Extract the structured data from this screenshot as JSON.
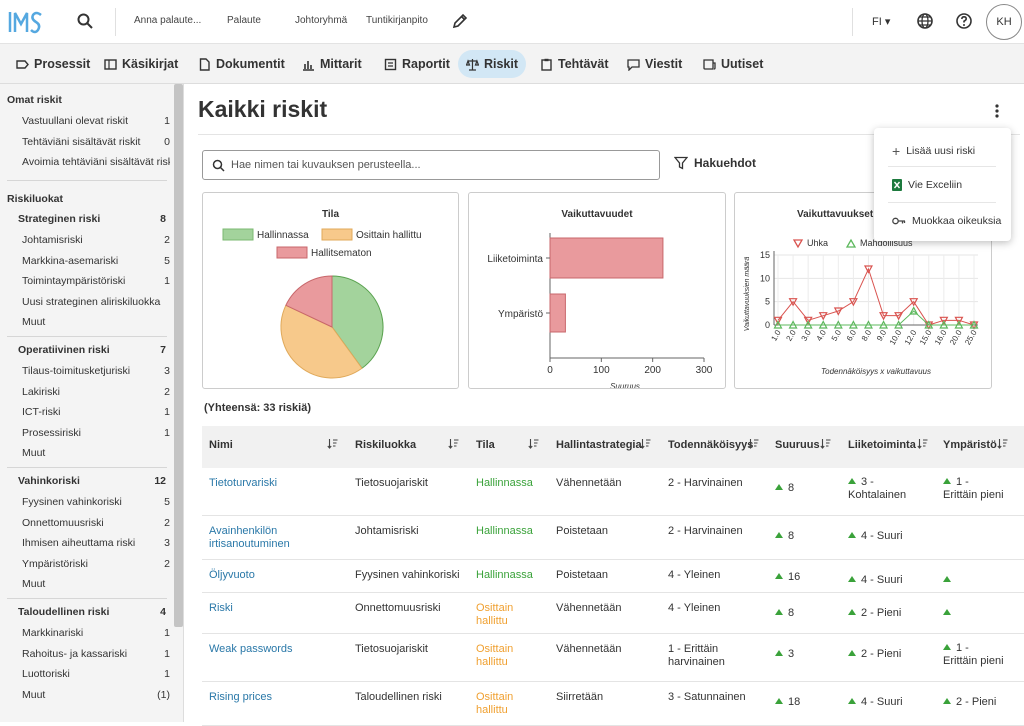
{
  "app": {
    "logo_text": "IMS",
    "user_initials": "KH",
    "language": "FI"
  },
  "top_links": [
    "Anna palaute...",
    "Palaute",
    "Johtoryhmä",
    "Tuntikirjanpito"
  ],
  "nav": [
    {
      "label": "Prosessit",
      "icon": "process-icon"
    },
    {
      "label": "Käsikirjat",
      "icon": "book-icon"
    },
    {
      "label": "Dokumentit",
      "icon": "document-icon"
    },
    {
      "label": "Mittarit",
      "icon": "bar-chart-icon"
    },
    {
      "label": "Raportit",
      "icon": "report-icon"
    },
    {
      "label": "Riskit",
      "icon": "scale-icon",
      "active": true
    },
    {
      "label": "Tehtävät",
      "icon": "clipboard-icon"
    },
    {
      "label": "Viestit",
      "icon": "message-icon"
    },
    {
      "label": "Uutiset",
      "icon": "news-icon"
    }
  ],
  "sidebar": {
    "own_title": "Omat riskit",
    "own": [
      {
        "label": "Vastuullani olevat riskit",
        "count": "1"
      },
      {
        "label": "Tehtäviäni sisältävät riskit",
        "count": "0"
      },
      {
        "label": "Avoimia tehtäviäni sisältävät riskit",
        "count": ""
      }
    ],
    "classes_title": "Riskiluokat",
    "groups": [
      {
        "label": "Strateginen riski",
        "count": "8",
        "items": [
          {
            "label": "Johtamisriski",
            "count": "2"
          },
          {
            "label": "Markkina-asemariski",
            "count": "5"
          },
          {
            "label": "Toimintaympäristöriski",
            "count": "1"
          },
          {
            "label": "Uusi strateginen aliriskiluokka",
            "count": ""
          },
          {
            "label": "Muut",
            "count": ""
          }
        ]
      },
      {
        "label": "Operatiivinen riski",
        "count": "7",
        "items": [
          {
            "label": "Tilaus-toimitusketjuriski",
            "count": "3"
          },
          {
            "label": "Lakiriski",
            "count": "2"
          },
          {
            "label": "ICT-riski",
            "count": "1"
          },
          {
            "label": "Prosessiriski",
            "count": "1"
          },
          {
            "label": "Muut",
            "count": ""
          }
        ]
      },
      {
        "label": "Vahinkoriski",
        "count": "12",
        "items": [
          {
            "label": "Fyysinen vahinkoriski",
            "count": "5"
          },
          {
            "label": "Onnettomuusriski",
            "count": "2"
          },
          {
            "label": "Ihmisen aiheuttama riski",
            "count": "3"
          },
          {
            "label": "Ympäristöriski",
            "count": "2"
          },
          {
            "label": "Muut",
            "count": ""
          }
        ]
      },
      {
        "label": "Taloudellinen riski",
        "count": "4",
        "items": [
          {
            "label": "Markkinariski",
            "count": "1"
          },
          {
            "label": "Rahoitus- ja kassariski",
            "count": "1"
          },
          {
            "label": "Luottoriski",
            "count": "1"
          },
          {
            "label": "Muut",
            "count": "(1)"
          }
        ]
      }
    ]
  },
  "page": {
    "title": "Kaikki riskit",
    "search_placeholder": "Hae nimen tai kuvauksen perusteella...",
    "filter_label": "Hakuehdot",
    "total": "(Yhteensä: 33 riskiä)"
  },
  "menu": {
    "add": "Lisää uusi riski",
    "export": "Vie Exceliin",
    "rights": "Muokkaa oikeuksia"
  },
  "chart_data": [
    {
      "type": "pie",
      "title": "Tila",
      "categories": [
        "Hallinnassa",
        "Osittain hallittu",
        "Hallitsematon"
      ],
      "values": [
        40,
        42,
        18
      ],
      "colors": [
        "#a3d39c",
        "#f7c98b",
        "#e99a9d"
      ]
    },
    {
      "type": "bar",
      "title": "Vaikuttavuudet",
      "categories": [
        "Liiketoiminta",
        "Ympäristö"
      ],
      "values": [
        220,
        30
      ],
      "xlabel": "Suuruus",
      "xlim": [
        0,
        300
      ],
      "ticks": [
        "0",
        "100",
        "200",
        "300"
      ],
      "color": "#e99a9d"
    },
    {
      "type": "line",
      "title": "Vaikuttavuukset",
      "xlabel": "Todennäköisyys x vaikuttavuus",
      "ylabel": "Vaikuttavuuksien määrä",
      "ylim": [
        0,
        15
      ],
      "yticks": [
        "0",
        "5",
        "10",
        "15"
      ],
      "categories": [
        "1.0",
        "2.0",
        "3.0",
        "4.0",
        "5.0",
        "6.0",
        "8.0",
        "9.0",
        "10.0",
        "12.0",
        "15.0",
        "16.0",
        "20.0",
        "25.0"
      ],
      "series": [
        {
          "name": "Uhka",
          "color": "#d9534f",
          "marker": "triangle-down",
          "values": [
            1,
            5,
            1,
            2,
            3,
            5,
            12,
            2,
            2,
            5,
            0,
            1,
            1,
            0
          ]
        },
        {
          "name": "Mahdollisuus",
          "color": "#5cb85c",
          "marker": "triangle-up",
          "values": [
            0,
            0,
            0,
            0,
            0,
            0,
            0,
            0,
            0,
            3,
            0,
            0,
            0,
            0
          ]
        }
      ]
    }
  ],
  "table": {
    "headers": [
      "Nimi",
      "Riskiluokka",
      "Tila",
      "Hallintastrategia",
      "Todennäköisyys",
      "Suuruus",
      "Liiketoiminta",
      "Ympäristö"
    ],
    "rows": [
      {
        "name": "Tietoturvariski",
        "class": "Tietosuojariskit",
        "state": "Hallinnassa",
        "state_color": "green",
        "strategy": "Vähennetään",
        "prob": "2 - Harvinainen",
        "size": "8",
        "business": "3 -\nKohtalainen",
        "env": "1 -\nErittäin pieni"
      },
      {
        "name": "Avainhenkilön\nirtisanoutuminen",
        "class": "Johtamisriski",
        "state": "Hallinnassa",
        "state_color": "green",
        "strategy": "Poistetaan",
        "prob": "2 - Harvinainen",
        "size": "8",
        "business": "4 - Suuri",
        "env": ""
      },
      {
        "name": "Öljyvuoto",
        "class": "Fyysinen vahinkoriski",
        "state": "Hallinnassa",
        "state_color": "green",
        "strategy": "Poistetaan",
        "prob": "4 - Yleinen",
        "size": "16",
        "business": "4 - Suuri",
        "env": "-"
      },
      {
        "name": "Riski",
        "class": "Onnettomuusriski",
        "state": "Osittain\nhallittu",
        "state_color": "orange",
        "strategy": "Vähennetään",
        "prob": "4 - Yleinen",
        "size": "8",
        "business": "2 - Pieni",
        "env": "-"
      },
      {
        "name": "Weak passwords",
        "class": "Tietosuojariskit",
        "state": "Osittain\nhallittu",
        "state_color": "orange",
        "strategy": "Vähennetään",
        "prob": "1 - Erittäin\nharvinainen",
        "size": "3",
        "business": "2 - Pieni",
        "env": "1 -\nErittäin pieni"
      },
      {
        "name": "Rising prices",
        "class": "Taloudellinen riski",
        "state": "Osittain\nhallittu",
        "state_color": "orange",
        "strategy": "Siirretään",
        "prob": "3 - Satunnainen",
        "size": "18",
        "business": "4 - Suuri",
        "env": "2 - Pieni"
      }
    ]
  }
}
